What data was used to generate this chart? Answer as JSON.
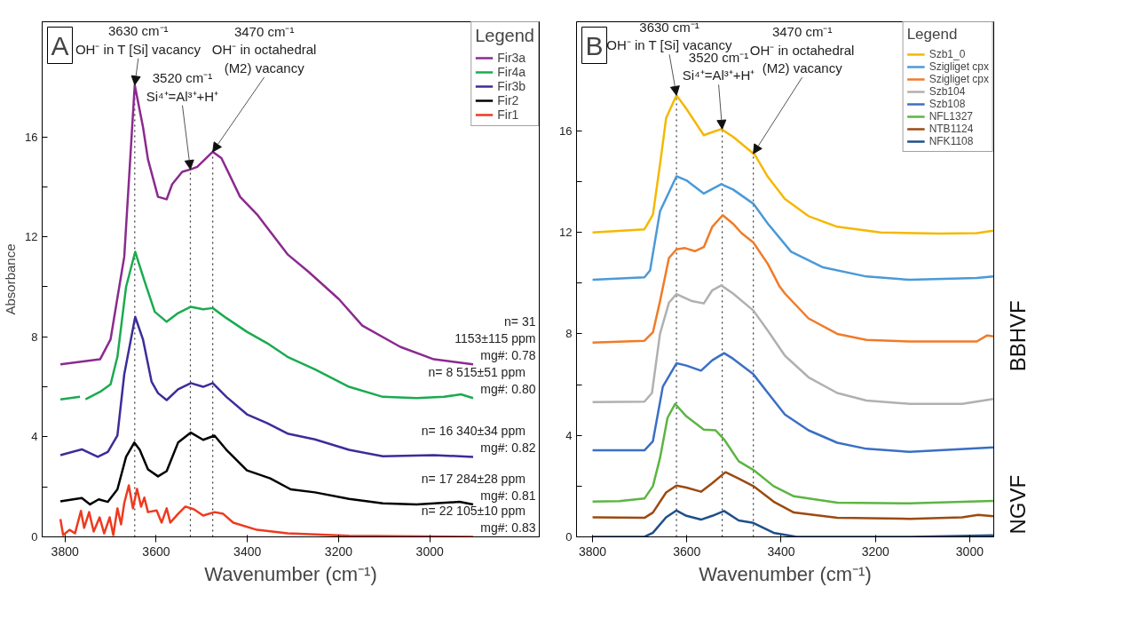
{
  "chart_data": [
    {
      "type": "line",
      "xlabel": "Wavenumber (cm⁻¹)",
      "ylabel": "Absorbance",
      "legend": "top right",
      "legend_title": "Legend",
      "xlim": [
        3850,
        2760
      ],
      "ylim": [
        0,
        20.6
      ],
      "xticks": [
        3800,
        3600,
        3400,
        3200,
        3000
      ],
      "yticks": [
        0,
        {
          "value": 2,
          "label": null
        },
        4,
        {
          "value": 6,
          "label": null
        },
        8,
        {
          "value": 10,
          "label": null
        },
        12,
        {
          "value": 14,
          "label": null
        },
        16
      ],
      "ref_lines": [
        {
          "axis": "x",
          "value": 3647,
          "line_style": "dotted"
        },
        {
          "axis": "x",
          "value": 3525,
          "line_style": "dotted"
        },
        {
          "axis": "x",
          "value": 3476,
          "line_style": "dotted"
        }
      ],
      "annotations": [
        "A",
        {
          "text": "3630 cm⁻¹\nOH⁻ in T [Si] vacancy",
          "x": 3647,
          "y": 18.07
        },
        {
          "text": "3520 cm⁻¹\nSi⁴⁺=Al³⁺+H⁺",
          "x": 3525,
          "y": 14.7
        },
        {
          "text": "3470 cm⁻¹\nOH⁻ in octahedral\n(M2) vacancy",
          "x": 3476,
          "y": 15.4
        },
        {
          "text": "n= 31\n1153±115 ppm\nmg#: 0.78",
          "x": 2905,
          "y": 6.9
        },
        {
          "text": "n= 8    515±51 ppm\nmg#: 0.80",
          "x": 2905,
          "y": 5.55
        },
        {
          "text": "n= 16    340±34 ppm\nmg#: 0.82",
          "x": 2905,
          "y": 3.2
        },
        {
          "text": "n= 17    284±28 ppm\nmg#: 0.81",
          "x": 2905,
          "y": 1.3
        },
        {
          "text": "n= 22    105±10 ppm\nmg#: 0.83",
          "x": 2905,
          "y": 0.0
        }
      ],
      "series": [
        {
          "name": "Fir3a",
          "color": "#8b2a8f",
          "x": [
            3810,
            3723,
            3700,
            3681,
            3670,
            3647,
            3629,
            3618,
            3596,
            3577,
            3565,
            3543,
            3524,
            3510,
            3476,
            3457,
            3416,
            3379,
            3312,
            3266,
            3199,
            3148,
            3065,
            2991,
            2905
          ],
          "values": [
            6.9,
            7.1,
            7.9,
            10.0,
            11.2,
            18.07,
            16.4,
            15.1,
            13.6,
            13.5,
            14.1,
            14.6,
            14.7,
            14.8,
            15.4,
            15.15,
            13.6,
            12.9,
            11.3,
            10.6,
            9.5,
            8.45,
            7.6,
            7.1,
            6.9
          ]
        },
        {
          "name": "Fir4a",
          "color": "#1aab4f",
          "x": [
            3810,
            3767,
            3760,
            3755,
            3723,
            3700,
            3685,
            3666,
            3646,
            3625,
            3603,
            3577,
            3552,
            3524,
            3497,
            3476,
            3446,
            3401,
            3357,
            3312,
            3252,
            3177,
            3103,
            3029,
            2969,
            2932,
            2905
          ],
          "values": [
            5.5,
            5.6,
            null,
            5.5,
            5.8,
            6.1,
            7.2,
            10.0,
            11.4,
            10.2,
            9.0,
            8.6,
            8.95,
            9.2,
            9.1,
            9.15,
            8.75,
            8.2,
            7.75,
            7.2,
            6.7,
            6.0,
            5.6,
            5.55,
            5.6,
            5.7,
            5.55
          ]
        },
        {
          "name": "Fir3b",
          "color": "#3b2d9a",
          "x": [
            3810,
            3763,
            3728,
            3706,
            3685,
            3670,
            3646,
            3629,
            3610,
            3596,
            3577,
            3552,
            3524,
            3497,
            3476,
            3446,
            3401,
            3357,
            3312,
            3252,
            3177,
            3103,
            2991,
            2905
          ],
          "values": [
            3.27,
            3.5,
            3.2,
            3.4,
            4.05,
            6.5,
            8.8,
            7.9,
            6.2,
            5.75,
            5.47,
            5.9,
            6.15,
            6.0,
            6.15,
            5.6,
            4.9,
            4.55,
            4.13,
            3.9,
            3.48,
            3.22,
            3.27,
            3.2
          ]
        },
        {
          "name": "Fir2",
          "color": "#000000",
          "x": [
            3810,
            3763,
            3745,
            3726,
            3706,
            3685,
            3666,
            3648,
            3636,
            3618,
            3596,
            3577,
            3552,
            3524,
            3497,
            3472,
            3446,
            3401,
            3350,
            3305,
            3252,
            3177,
            3103,
            3029,
            2935,
            2905
          ],
          "values": [
            1.42,
            1.55,
            1.3,
            1.5,
            1.4,
            1.9,
            3.2,
            3.77,
            3.48,
            2.7,
            2.42,
            2.63,
            3.77,
            4.17,
            3.88,
            4.05,
            3.48,
            2.66,
            2.34,
            1.9,
            1.78,
            1.52,
            1.34,
            1.3,
            1.4,
            1.3
          ]
        },
        {
          "name": "Fir1",
          "color": "#ee3a1f",
          "x": [
            3810,
            3804,
            3790,
            3778,
            3765,
            3758,
            3747,
            3737,
            3724,
            3714,
            3702,
            3694,
            3685,
            3677,
            3670,
            3660,
            3651,
            3642,
            3633,
            3626,
            3618,
            3599,
            3588,
            3577,
            3569,
            3552,
            3536,
            3517,
            3497,
            3472,
            3453,
            3431,
            3379,
            3312,
            3177,
            2905
          ],
          "values": [
            0.71,
            0.07,
            0.28,
            0.14,
            1.04,
            0.36,
            0.99,
            0.21,
            0.78,
            0.14,
            0.78,
            0.07,
            1.14,
            0.5,
            1.35,
            2.06,
            1.14,
            1.92,
            1.21,
            1.57,
            0.99,
            1.06,
            0.57,
            1.14,
            0.57,
            0.92,
            1.21,
            1.1,
            0.85,
            0.99,
            0.92,
            0.57,
            0.28,
            0.14,
            0.04,
            0.0
          ]
        }
      ]
    },
    {
      "type": "line",
      "xlabel": "Wavenumber (cm⁻¹)",
      "legend": "top right",
      "legend_title": "Legend",
      "xlim": [
        3834,
        2949
      ],
      "ylim": [
        0,
        20.3
      ],
      "xticks": [
        3800,
        3600,
        3400,
        3200,
        3000
      ],
      "yticks": [
        0,
        {
          "value": 2,
          "label": null
        },
        4,
        {
          "value": 6,
          "label": null
        },
        8,
        {
          "value": 10,
          "label": null
        },
        12,
        {
          "value": 14,
          "label": null
        },
        16
      ],
      "ref_lines": [
        {
          "axis": "x",
          "value": 3622,
          "line_style": "dotted"
        },
        {
          "axis": "x",
          "value": 3525,
          "line_style": "dotted"
        },
        {
          "axis": "x",
          "value": 3459,
          "line_style": "dotted"
        }
      ],
      "annotations": [
        "B",
        "BBHVF",
        "NGVF",
        {
          "text": "3630 cm⁻¹\nOH⁻ in T [Si] vacancy",
          "x": 3622,
          "y": 17.4
        },
        {
          "text": "3520 cm⁻¹\nSi⁴⁺=Al³⁺+H⁺",
          "x": 3525,
          "y": 16.07
        },
        {
          "text": "3470 cm⁻¹\nOH⁻ in octahedral\n(M2) vacancy",
          "x": 3459,
          "y": 15.1
        }
      ],
      "series": [
        {
          "name": "Szb1_0",
          "color": "#f5b800",
          "x": [
            3800,
            3690,
            3672,
            3657,
            3644,
            3622,
            3601,
            3564,
            3546,
            3527,
            3502,
            3478,
            3456,
            3428,
            3392,
            3342,
            3281,
            3189,
            3065,
            2985,
            2950
          ],
          "values": [
            12.0,
            12.12,
            12.7,
            14.67,
            16.5,
            17.4,
            16.87,
            15.83,
            15.95,
            16.07,
            15.77,
            15.4,
            15.06,
            14.18,
            13.32,
            12.64,
            12.22,
            12.0,
            11.95,
            11.97,
            12.07
          ]
        },
        {
          "name": "Szigliget cpx",
          "color": "#4a9ad8",
          "x": [
            3800,
            3690,
            3678,
            3657,
            3622,
            3601,
            3564,
            3527,
            3502,
            3459,
            3428,
            3379,
            3311,
            3219,
            3127,
            2985,
            2950
          ],
          "values": [
            10.13,
            10.23,
            10.5,
            12.83,
            14.21,
            14.05,
            13.53,
            13.9,
            13.69,
            13.13,
            12.34,
            11.24,
            10.62,
            10.26,
            10.13,
            10.2,
            10.26
          ]
        },
        {
          "name": "Szigliget cpx",
          "color": "#f07b28",
          "x": [
            3800,
            3690,
            3672,
            3657,
            3638,
            3622,
            3604,
            3583,
            3564,
            3546,
            3524,
            3502,
            3484,
            3459,
            3428,
            3404,
            3392,
            3342,
            3281,
            3219,
            3127,
            2985,
            2963,
            2950
          ],
          "values": [
            7.66,
            7.73,
            8.06,
            9.28,
            10.99,
            11.33,
            11.38,
            11.26,
            11.42,
            12.22,
            12.68,
            12.34,
            11.97,
            11.6,
            10.75,
            9.89,
            9.59,
            8.61,
            8.0,
            7.76,
            7.7,
            7.7,
            7.94,
            7.9
          ]
        },
        {
          "name": "Szb104",
          "color": "#b0b0b0",
          "x": [
            3800,
            3690,
            3674,
            3657,
            3638,
            3622,
            3589,
            3564,
            3546,
            3527,
            3502,
            3459,
            3428,
            3392,
            3342,
            3281,
            3219,
            3127,
            3016,
            2950
          ],
          "values": [
            5.31,
            5.33,
            5.67,
            8.0,
            9.23,
            9.57,
            9.29,
            9.2,
            9.72,
            9.91,
            9.59,
            8.92,
            8.12,
            7.14,
            6.29,
            5.67,
            5.37,
            5.24,
            5.24,
            5.43
          ]
        },
        {
          "name": "Szb108",
          "color": "#3a6fc4",
          "x": [
            3800,
            3690,
            3672,
            3651,
            3622,
            3601,
            3570,
            3546,
            3521,
            3502,
            3459,
            3428,
            3392,
            3342,
            3281,
            3219,
            3127,
            2950
          ],
          "values": [
            3.41,
            3.41,
            3.77,
            5.92,
            6.84,
            6.75,
            6.55,
            6.96,
            7.24,
            7.02,
            6.41,
            5.67,
            4.82,
            4.2,
            3.71,
            3.47,
            3.35,
            3.53
          ]
        },
        {
          "name": "NFL1327",
          "color": "#5cb543",
          "x": [
            3800,
            3743,
            3690,
            3672,
            3657,
            3641,
            3625,
            3601,
            3564,
            3539,
            3521,
            3490,
            3459,
            3416,
            3373,
            3281,
            3127,
            2950
          ],
          "values": [
            1.39,
            1.41,
            1.51,
            2.0,
            3.1,
            4.69,
            5.24,
            4.75,
            4.23,
            4.2,
            3.84,
            2.98,
            2.64,
            2.0,
            1.6,
            1.35,
            1.32,
            1.42
          ]
        },
        {
          "name": "NTB1124",
          "color": "#9c4a10",
          "x": [
            3800,
            3690,
            3672,
            3644,
            3622,
            3601,
            3570,
            3546,
            3518,
            3490,
            3459,
            3416,
            3373,
            3281,
            3127,
            3016,
            2982,
            2950
          ],
          "values": [
            0.77,
            0.75,
            0.96,
            1.75,
            2.02,
            1.94,
            1.78,
            2.12,
            2.55,
            2.3,
            2.0,
            1.39,
            0.96,
            0.75,
            0.71,
            0.77,
            0.87,
            0.81
          ]
        },
        {
          "name": "NFK1108",
          "color": "#1f4f8a",
          "x": [
            3800,
            3690,
            3672,
            3644,
            3622,
            3601,
            3570,
            3546,
            3521,
            3490,
            3459,
            3416,
            3367,
            3127,
            2950
          ],
          "values": [
            0.0,
            0.0,
            0.16,
            0.77,
            1.04,
            0.83,
            0.68,
            0.83,
            1.02,
            0.65,
            0.55,
            0.16,
            0.0,
            0.0,
            0.06
          ]
        }
      ]
    }
  ]
}
